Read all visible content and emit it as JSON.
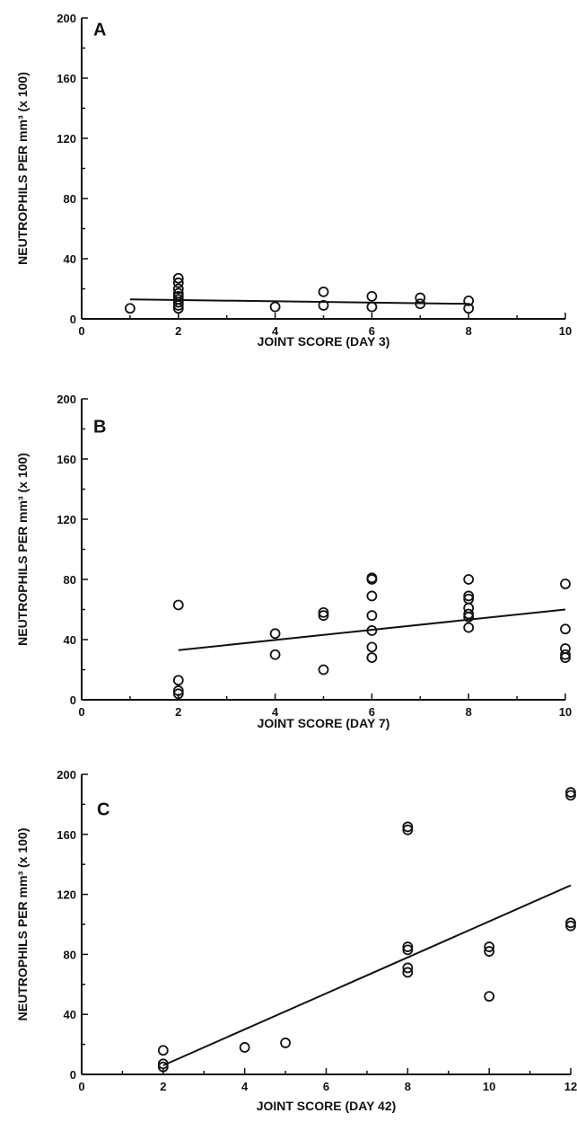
{
  "chart_data": [
    {
      "type": "scatter",
      "panel": "A",
      "xlabel": "JOINT SCORE (DAY 3)",
      "ylabel": "NEUTROPHILS PER mm³ (x 100)",
      "xlim": [
        0,
        10
      ],
      "ylim": [
        0,
        200
      ],
      "xticks": [
        0,
        2,
        4,
        6,
        8,
        10
      ],
      "yticks": [
        0,
        40,
        80,
        120,
        160,
        200
      ],
      "points": [
        [
          1,
          7
        ],
        [
          2,
          27
        ],
        [
          2,
          24
        ],
        [
          2,
          20
        ],
        [
          2,
          17
        ],
        [
          2,
          15
        ],
        [
          2,
          13
        ],
        [
          2,
          11
        ],
        [
          2,
          9
        ],
        [
          2,
          7
        ],
        [
          4,
          8
        ],
        [
          5,
          18
        ],
        [
          5,
          9
        ],
        [
          6,
          15
        ],
        [
          6,
          8
        ],
        [
          7,
          14
        ],
        [
          7,
          10
        ],
        [
          8,
          12
        ],
        [
          8,
          7
        ]
      ],
      "fit_line": [
        [
          1,
          13
        ],
        [
          8,
          10
        ]
      ]
    },
    {
      "type": "scatter",
      "panel": "B",
      "xlabel": "JOINT SCORE (DAY 7)",
      "ylabel": "NEUTROPHILS PER mm³ (x 100)",
      "xlim": [
        0,
        10
      ],
      "ylim": [
        0,
        200
      ],
      "xticks": [
        0,
        2,
        4,
        6,
        8,
        10
      ],
      "yticks": [
        0,
        40,
        80,
        120,
        160,
        200
      ],
      "points": [
        [
          2,
          63
        ],
        [
          2,
          13
        ],
        [
          2,
          6
        ],
        [
          2,
          4
        ],
        [
          4,
          44
        ],
        [
          4,
          30
        ],
        [
          5,
          58
        ],
        [
          5,
          56
        ],
        [
          5,
          20
        ],
        [
          6,
          81
        ],
        [
          6,
          80
        ],
        [
          6,
          69
        ],
        [
          6,
          56
        ],
        [
          6,
          46
        ],
        [
          6,
          35
        ],
        [
          6,
          28
        ],
        [
          8,
          80
        ],
        [
          8,
          69
        ],
        [
          8,
          67
        ],
        [
          8,
          61
        ],
        [
          8,
          57
        ],
        [
          8,
          55
        ],
        [
          8,
          48
        ],
        [
          10,
          77
        ],
        [
          10,
          47
        ],
        [
          10,
          34
        ],
        [
          10,
          30
        ],
        [
          10,
          28
        ]
      ],
      "fit_line": [
        [
          2,
          33
        ],
        [
          10,
          60
        ]
      ]
    },
    {
      "type": "scatter",
      "panel": "C",
      "xlabel": "JOINT SCORE (DAY 42)",
      "ylabel": "NEUTROPHILS PER mm³ (x 100)",
      "xlim": [
        0,
        12
      ],
      "ylim": [
        0,
        200
      ],
      "xticks": [
        0,
        2,
        4,
        6,
        8,
        10,
        12
      ],
      "yticks": [
        0,
        40,
        80,
        120,
        160,
        200
      ],
      "points": [
        [
          2,
          16
        ],
        [
          2,
          7
        ],
        [
          2,
          5
        ],
        [
          4,
          18
        ],
        [
          5,
          21
        ],
        [
          8,
          165
        ],
        [
          8,
          163
        ],
        [
          8,
          85
        ],
        [
          8,
          83
        ],
        [
          8,
          71
        ],
        [
          8,
          68
        ],
        [
          10,
          85
        ],
        [
          10,
          82
        ],
        [
          10,
          52
        ],
        [
          12,
          188
        ],
        [
          12,
          186
        ],
        [
          12,
          101
        ],
        [
          12,
          99
        ]
      ],
      "fit_line": [
        [
          2,
          6
        ],
        [
          12,
          126
        ]
      ]
    }
  ]
}
